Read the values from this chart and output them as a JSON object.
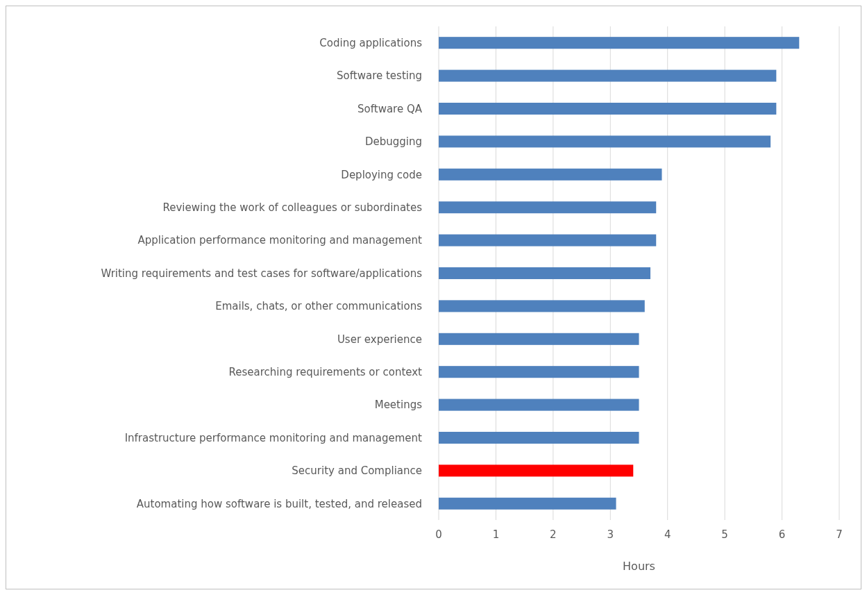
{
  "chart_data": {
    "type": "bar",
    "orientation": "horizontal",
    "xlabel": "Hours",
    "categories": [
      "Coding applications",
      "Software testing",
      "Software QA",
      "Debugging",
      "Deploying code",
      "Reviewing the work of colleagues or subordinates",
      "Application performance monitoring and management",
      "Writing requirements and test cases for software/applications",
      "Emails, chats, or other communications",
      "User experience",
      "Researching requirements or context",
      "Meetings",
      "Infrastructure performance monitoring and management",
      "Security and Compliance",
      "Automating how software is built, tested, and released"
    ],
    "values": [
      6.3,
      5.9,
      5.9,
      5.8,
      3.9,
      3.8,
      3.8,
      3.7,
      3.6,
      3.5,
      3.5,
      3.5,
      3.5,
      3.4,
      3.1
    ],
    "colors": [
      "#4f81bd",
      "#4f81bd",
      "#4f81bd",
      "#4f81bd",
      "#4f81bd",
      "#4f81bd",
      "#4f81bd",
      "#4f81bd",
      "#4f81bd",
      "#4f81bd",
      "#4f81bd",
      "#4f81bd",
      "#4f81bd",
      "#ff0000",
      "#4f81bd"
    ],
    "xlim": [
      0,
      7
    ],
    "xticks": [
      0,
      1,
      2,
      3,
      4,
      5,
      6,
      7
    ],
    "grid": "x"
  }
}
